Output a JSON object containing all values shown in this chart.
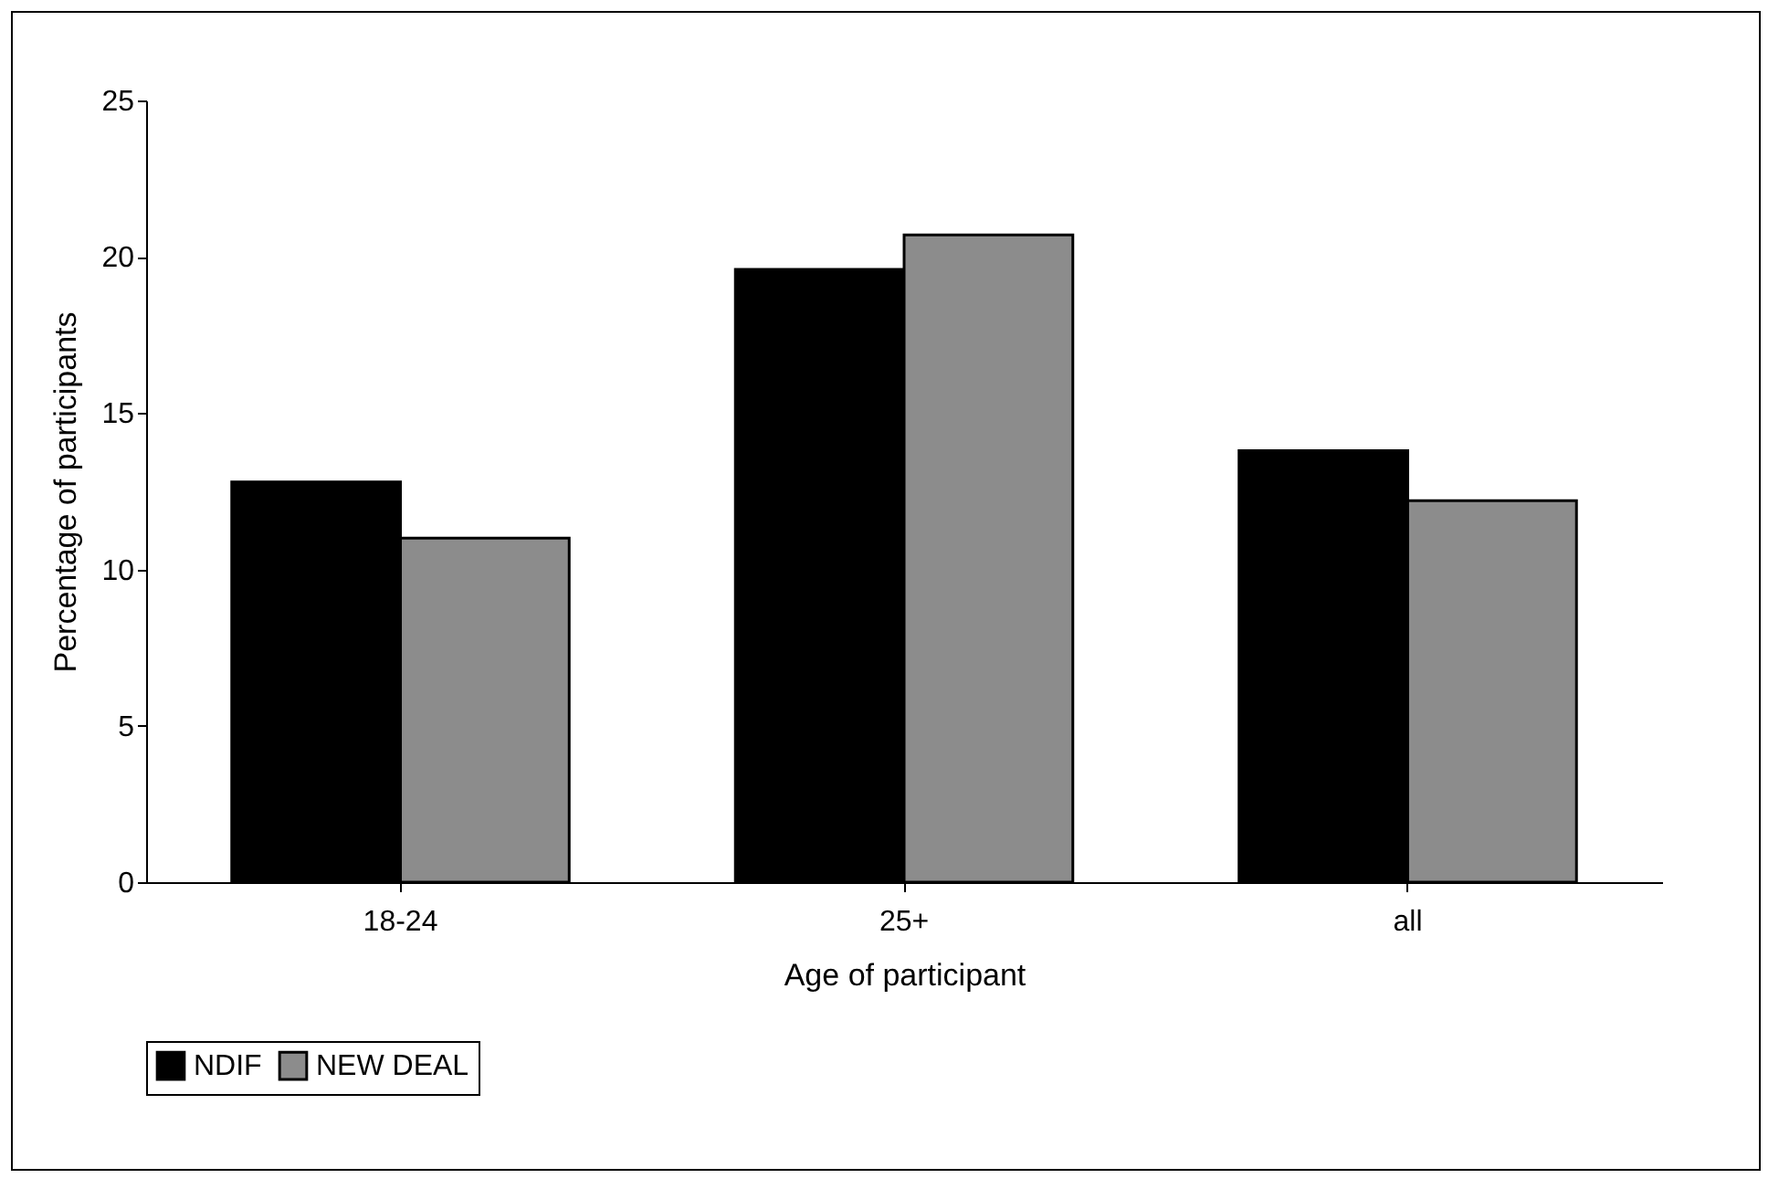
{
  "chart_data": {
    "type": "bar",
    "xlabel": "Age of participant",
    "ylabel": "Percentage of participants",
    "categories": [
      "18-24",
      "25+",
      "all"
    ],
    "series": [
      {
        "name": "NDIF",
        "color": "#000000",
        "values": [
          12.8,
          19.6,
          13.8
        ]
      },
      {
        "name": "NEW DEAL",
        "color": "#8c8c8c",
        "values": [
          11.0,
          20.7,
          12.2
        ]
      }
    ],
    "ylim": [
      0,
      25
    ],
    "yticks": [
      0,
      5,
      10,
      15,
      20,
      25
    ],
    "grid": false,
    "legend": "bottom"
  }
}
